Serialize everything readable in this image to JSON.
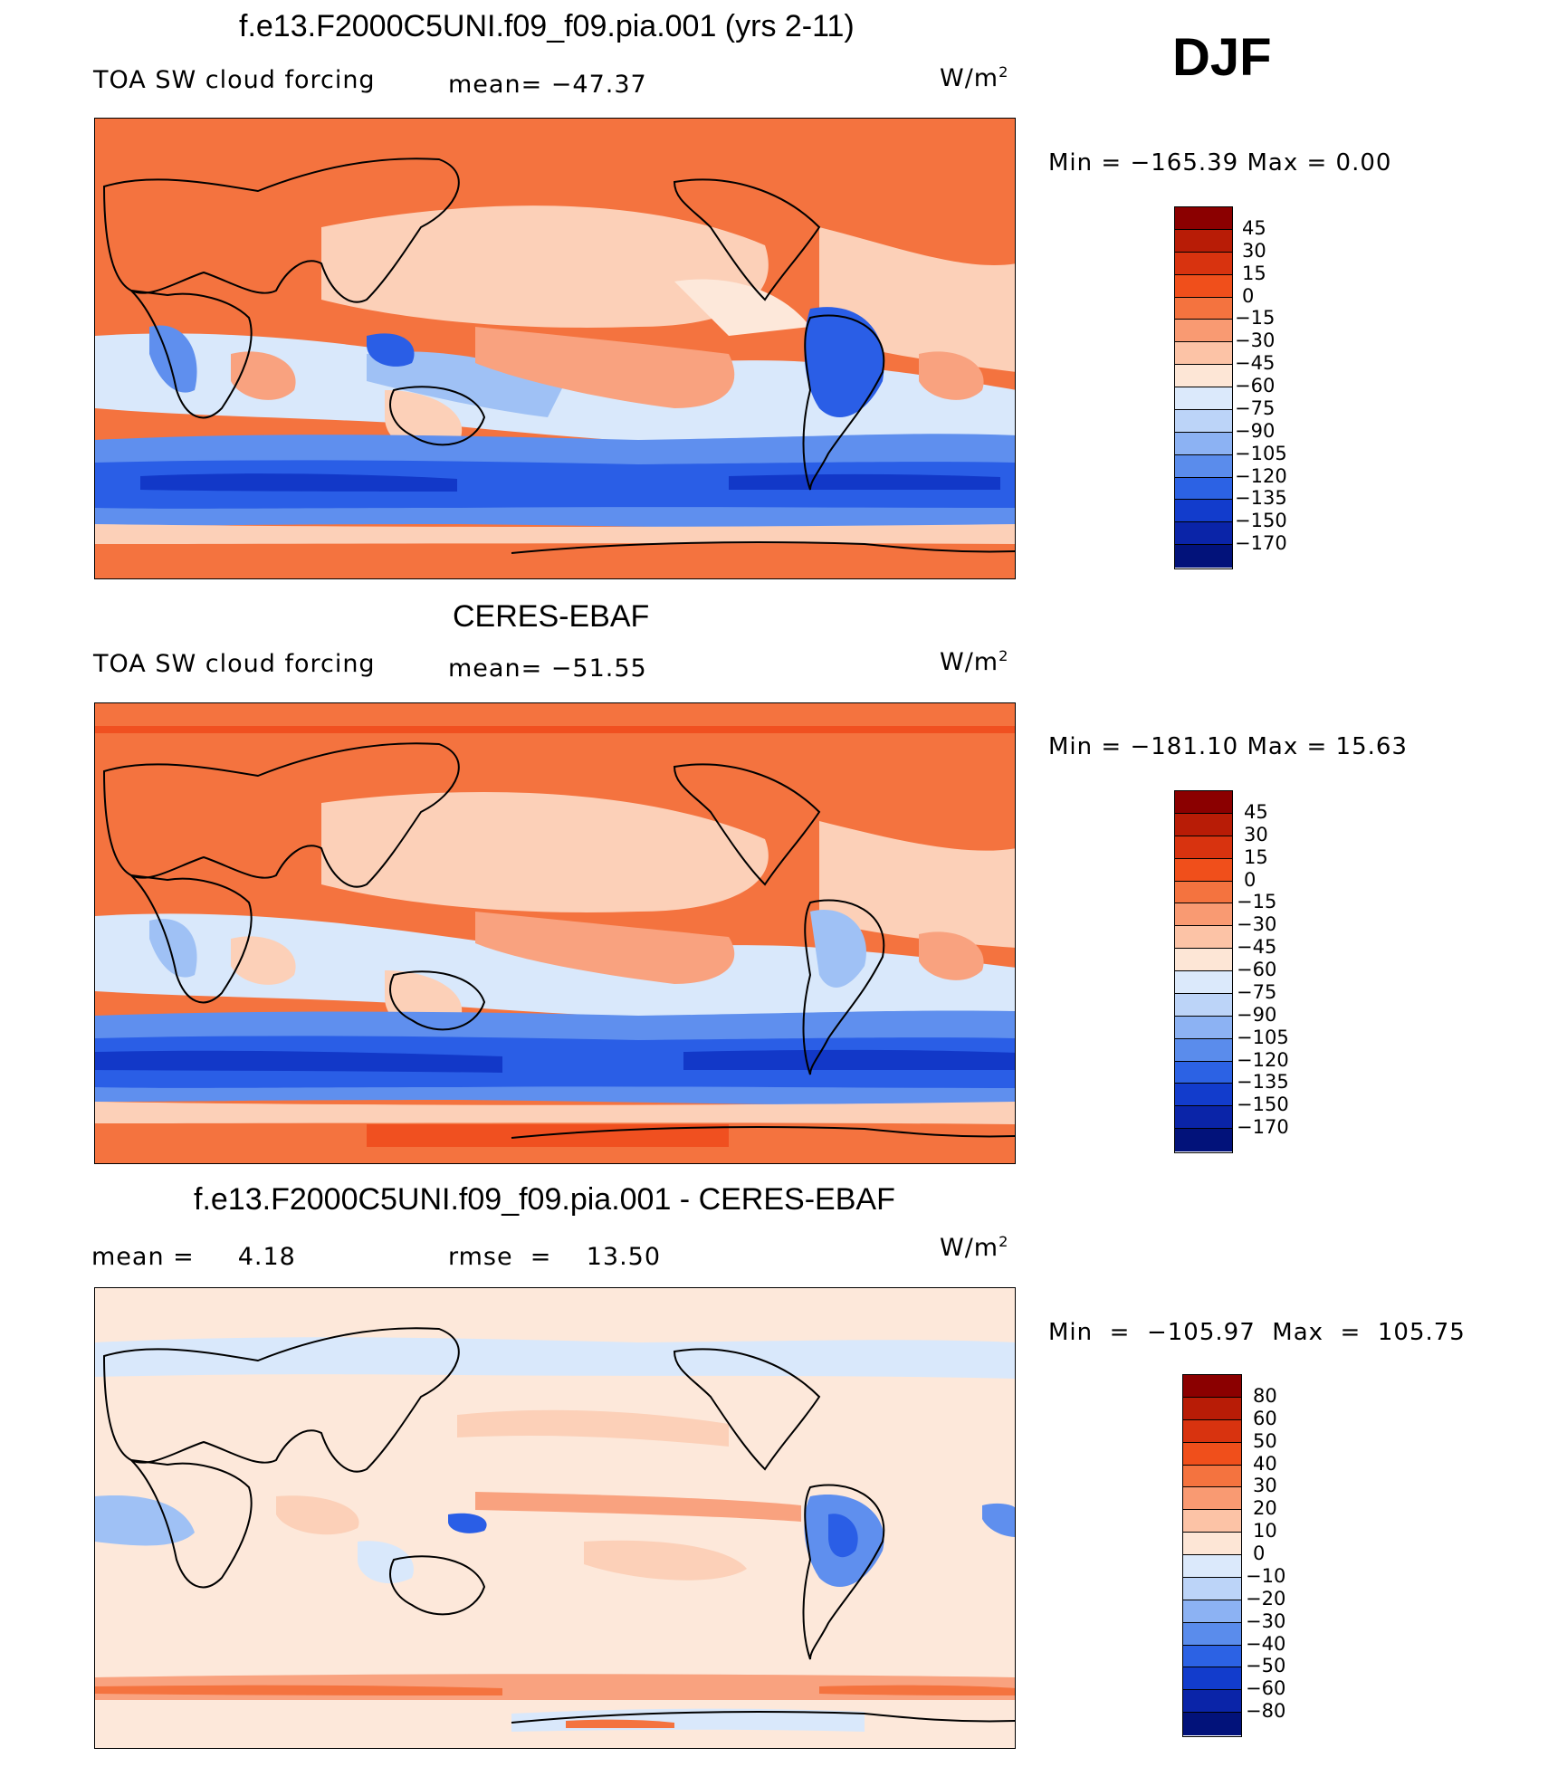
{
  "season": "DJF",
  "colors": {
    "ocean_orange": "#f4733f",
    "salmon": "#f9a27f",
    "peach": "#fcd0b8",
    "cream": "#fde8da",
    "pale_blue": "#d9e8fb",
    "light_blue": "#9fc1f5",
    "mid_blue": "#5f8fee",
    "blue": "#2a5ee6",
    "dark_blue": "#1238c8"
  },
  "panels": [
    {
      "title": "f.e13.F2000C5UNI.f09_f09.pia.001 (yrs 2-11)",
      "left_label": "TOA SW cloud forcing",
      "mid_label": "mean= −47.37",
      "units": "W/m",
      "units_sup": "2",
      "minmax": "Min  =  −165.39  Max  =     0.00",
      "colorbar": {
        "labels": [
          "45",
          "30",
          "15",
          "0",
          "−15",
          "−30",
          "−45",
          "−60",
          "−75",
          "−90",
          "−105",
          "−120",
          "−135",
          "−150",
          "−170"
        ],
        "colors": [
          "#8b0000",
          "#b81c06",
          "#d8330f",
          "#f04f1b",
          "#f4733f",
          "#f99a72",
          "#fcc3a6",
          "#fde6d6",
          "#dbe9fb",
          "#bcd4f8",
          "#8cb2f3",
          "#5a8cec",
          "#2c62e4",
          "#123ccc",
          "#0a24a8",
          "#02127a"
        ]
      }
    },
    {
      "title": "CERES-EBAF",
      "left_label": "TOA SW cloud forcing",
      "mid_label": "mean= −51.55",
      "units": "W/m",
      "units_sup": "2",
      "minmax": "Min  =  −181.10  Max  =   15.63",
      "colorbar": {
        "labels": [
          "45",
          "30",
          "15",
          "0",
          "−15",
          "−30",
          "−45",
          "−60",
          "−75",
          "−90",
          "−105",
          "−120",
          "−135",
          "−150",
          "−170"
        ],
        "colors": [
          "#8b0000",
          "#b81c06",
          "#d8330f",
          "#f04f1b",
          "#f4733f",
          "#f99a72",
          "#fcc3a6",
          "#fde6d6",
          "#dbe9fb",
          "#bcd4f8",
          "#8cb2f3",
          "#5a8cec",
          "#2c62e4",
          "#123ccc",
          "#0a24a8",
          "#02127a"
        ]
      }
    },
    {
      "title": "f.e13.F2000C5UNI.f09_f09.pia.001 - CERES-EBAF",
      "left_label": "mean =     4.18",
      "mid_label": "rmse  =    13.50",
      "units": "W/m",
      "units_sup": "2",
      "minmax": "Min  =  −105.97  Max  =  105.75",
      "colorbar": {
        "labels": [
          "80",
          "60",
          "50",
          "40",
          "30",
          "20",
          "10",
          "0",
          "−10",
          "−20",
          "−30",
          "−40",
          "−50",
          "−60",
          "−80"
        ],
        "colors": [
          "#8b0000",
          "#b81c06",
          "#d8330f",
          "#f04f1b",
          "#f4733f",
          "#f99a72",
          "#fcc3a6",
          "#fde6d6",
          "#dbe9fb",
          "#bcd4f8",
          "#8cb2f3",
          "#5a8cec",
          "#2c62e4",
          "#123ccc",
          "#0a24a8",
          "#02127a"
        ]
      }
    }
  ]
}
